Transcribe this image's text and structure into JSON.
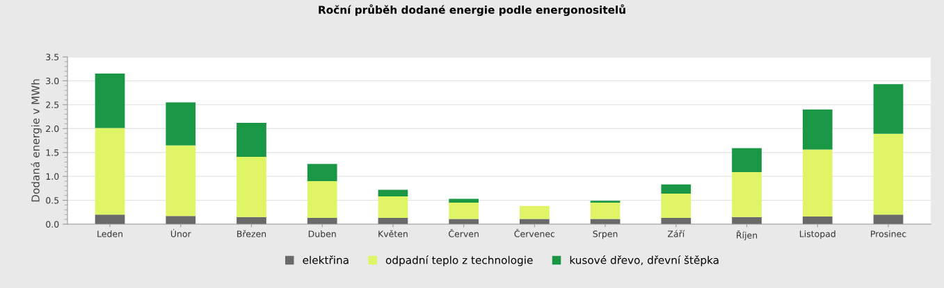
{
  "chart_data": {
    "type": "bar",
    "title": "Roční průběh dodané energie podle energonositelů",
    "ylabel": "Dodaná energie v MWh",
    "categories": [
      "Leden",
      "Únor",
      "Březen",
      "Duben",
      "Květen",
      "Červen",
      "Červenec",
      "Srpen",
      "Září",
      "Říjen",
      "Listopad",
      "Prosinec"
    ],
    "stacked": true,
    "series": [
      {
        "name": "elektřina",
        "color": "#696969",
        "values": [
          0.2,
          0.17,
          0.15,
          0.13,
          0.13,
          0.11,
          0.11,
          0.11,
          0.13,
          0.15,
          0.16,
          0.2
        ]
      },
      {
        "name": "odpadní teplo z technologie",
        "color": "#dff566",
        "values": [
          1.81,
          1.48,
          1.26,
          0.77,
          0.45,
          0.34,
          0.27,
          0.34,
          0.51,
          0.94,
          1.4,
          1.69
        ]
      },
      {
        "name": "kusové dřevo, dřevní štěpka",
        "color": "#1a9745",
        "values": [
          1.14,
          0.9,
          0.71,
          0.36,
          0.14,
          0.08,
          0,
          0.04,
          0.19,
          0.5,
          0.84,
          1.04
        ]
      }
    ],
    "ylim": [
      0,
      3.5
    ],
    "yticks": [
      {
        "value": 0,
        "label": "0.0"
      },
      0.5,
      {
        "value": 1,
        "label": "1.0"
      },
      1.5,
      {
        "value": 2,
        "label": "2.0"
      },
      2.5,
      {
        "value": 3,
        "label": "3.0"
      },
      3.5
    ],
    "grid": "y",
    "legend": "bottom"
  }
}
